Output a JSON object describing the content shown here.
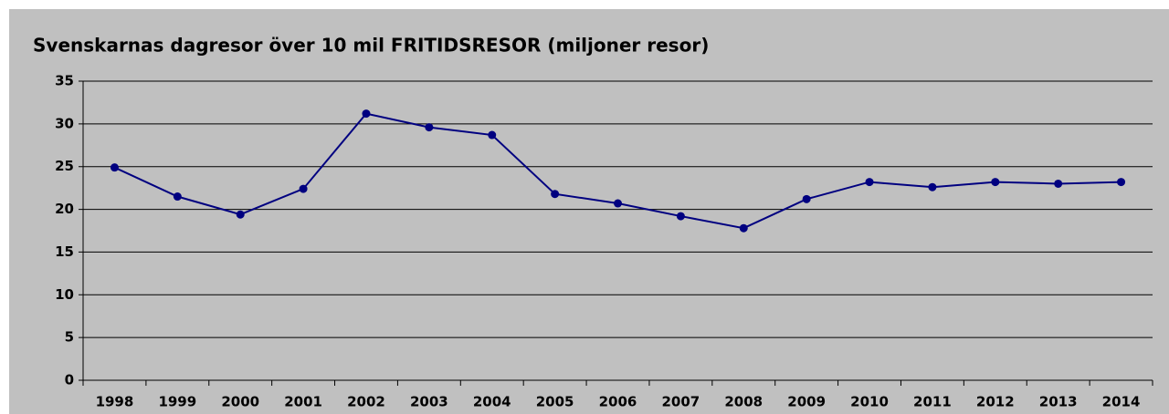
{
  "chart_data": {
    "type": "line",
    "title": "Svenskarnas dagresor över 10 mil FRITIDSRESOR (miljoner resor)",
    "categories": [
      "1998",
      "1999",
      "2000",
      "2001",
      "2002",
      "2003",
      "2004",
      "2005",
      "2006",
      "2007",
      "2008",
      "2009",
      "2010",
      "2011",
      "2012",
      "2013",
      "2014"
    ],
    "series": [
      {
        "name": "Fritidsresor",
        "color": "#000080",
        "values": [
          24.9,
          21.5,
          19.4,
          22.4,
          31.2,
          29.6,
          28.7,
          21.8,
          20.7,
          19.2,
          17.8,
          21.2,
          23.2,
          22.6,
          23.2,
          23.0,
          23.2
        ]
      }
    ],
    "ylim": [
      0,
      35
    ],
    "yticks": [
      0,
      5,
      10,
      15,
      20,
      25,
      30,
      35
    ],
    "grid": true
  }
}
